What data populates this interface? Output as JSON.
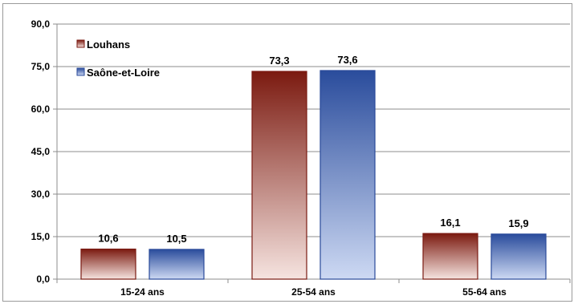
{
  "chart_data": {
    "type": "bar",
    "categories": [
      "15-24 ans",
      "25-54 ans",
      "55-64 ans"
    ],
    "series": [
      {
        "name": "Louhans",
        "values": [
          10.6,
          73.3,
          16.1
        ],
        "labels": [
          "10,6",
          "73,3",
          "16,1"
        ],
        "color_top": "#7b1a10",
        "color_bottom": "#f6e4e0",
        "border": "#7a1a12"
      },
      {
        "name": "Saône-et-Loire",
        "values": [
          10.5,
          73.6,
          15.9
        ],
        "labels": [
          "10,5",
          "73,6",
          "15,9"
        ],
        "color_top": "#2a4c9c",
        "color_bottom": "#cdd9f3",
        "border": "#2a4a9a"
      }
    ],
    "ylim": [
      0,
      90
    ],
    "yticks": [
      0,
      15,
      30,
      45,
      60,
      75,
      90
    ],
    "ytick_labels": [
      "0,0",
      "15,0",
      "30,0",
      "45,0",
      "60,0",
      "75,0",
      "90,0"
    ],
    "grid": true,
    "legend_position": "top-left",
    "title": "",
    "xlabel": "",
    "ylabel": ""
  }
}
